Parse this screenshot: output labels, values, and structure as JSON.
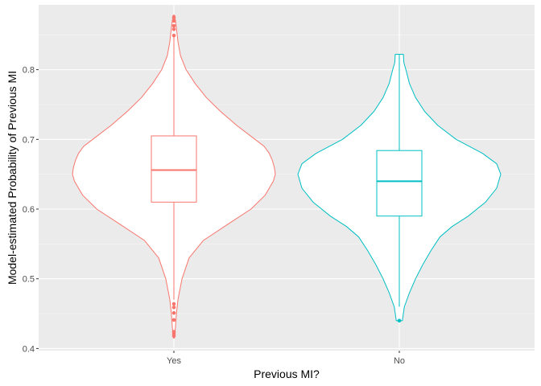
{
  "chart_data": {
    "type": "violin",
    "xlabel": "Previous MI?",
    "ylabel": "Model-estimated Probability of Previous MI",
    "ylim": [
      0.397,
      0.893
    ],
    "yticks": [
      0.4,
      0.5,
      0.6,
      0.7,
      0.8
    ],
    "ytick_labels": [
      "0.4",
      "0.5",
      "0.6",
      "0.7",
      "0.8"
    ],
    "grid": true,
    "background": "#ebebeb",
    "categories": [
      "Yes",
      "No"
    ],
    "series": [
      {
        "category": "Yes",
        "color": "#f8766d",
        "box": {
          "q1": 0.61,
          "median": 0.656,
          "q3": 0.705,
          "whisker_low": 0.47,
          "whisker_high": 0.847
        },
        "outliers": [
          0.875,
          0.87,
          0.863,
          0.858,
          0.849,
          0.464,
          0.459,
          0.451,
          0.441,
          0.424,
          0.421,
          0.418
        ],
        "violin": {
          "min": 0.415,
          "max": 0.878,
          "profile": [
            [
              0.415,
              0.005
            ],
            [
              0.43,
              0.015
            ],
            [
              0.45,
              0.025
            ],
            [
              0.47,
              0.04
            ],
            [
              0.5,
              0.08
            ],
            [
              0.53,
              0.15
            ],
            [
              0.555,
              0.29
            ],
            [
              0.58,
              0.55
            ],
            [
              0.6,
              0.76
            ],
            [
              0.62,
              0.9
            ],
            [
              0.64,
              0.98
            ],
            [
              0.65,
              1.0
            ],
            [
              0.66,
              0.99
            ],
            [
              0.67,
              0.97
            ],
            [
              0.68,
              0.94
            ],
            [
              0.69,
              0.89
            ],
            [
              0.7,
              0.8
            ],
            [
              0.72,
              0.62
            ],
            [
              0.74,
              0.46
            ],
            [
              0.76,
              0.32
            ],
            [
              0.78,
              0.21
            ],
            [
              0.8,
              0.12
            ],
            [
              0.82,
              0.065
            ],
            [
              0.84,
              0.04
            ],
            [
              0.86,
              0.025
            ],
            [
              0.878,
              0.008
            ]
          ]
        }
      },
      {
        "category": "No",
        "color": "#00bfc4",
        "box": {
          "q1": 0.59,
          "median": 0.64,
          "q3": 0.684,
          "whisker_low": 0.46,
          "whisker_high": 0.822
        },
        "outliers": [
          0.44
        ],
        "violin": {
          "min": 0.44,
          "max": 0.822,
          "profile": [
            [
              0.44,
              0.03
            ],
            [
              0.46,
              0.05
            ],
            [
              0.48,
              0.1
            ],
            [
              0.5,
              0.16
            ],
            [
              0.52,
              0.23
            ],
            [
              0.54,
              0.31
            ],
            [
              0.56,
              0.4
            ],
            [
              0.575,
              0.52
            ],
            [
              0.59,
              0.68
            ],
            [
              0.61,
              0.85
            ],
            [
              0.63,
              0.96
            ],
            [
              0.65,
              1.0
            ],
            [
              0.665,
              0.96
            ],
            [
              0.68,
              0.82
            ],
            [
              0.7,
              0.56
            ],
            [
              0.72,
              0.38
            ],
            [
              0.74,
              0.25
            ],
            [
              0.76,
              0.16
            ],
            [
              0.78,
              0.1
            ],
            [
              0.8,
              0.065
            ],
            [
              0.81,
              0.045
            ],
            [
              0.822,
              0.04
            ]
          ]
        }
      }
    ]
  }
}
